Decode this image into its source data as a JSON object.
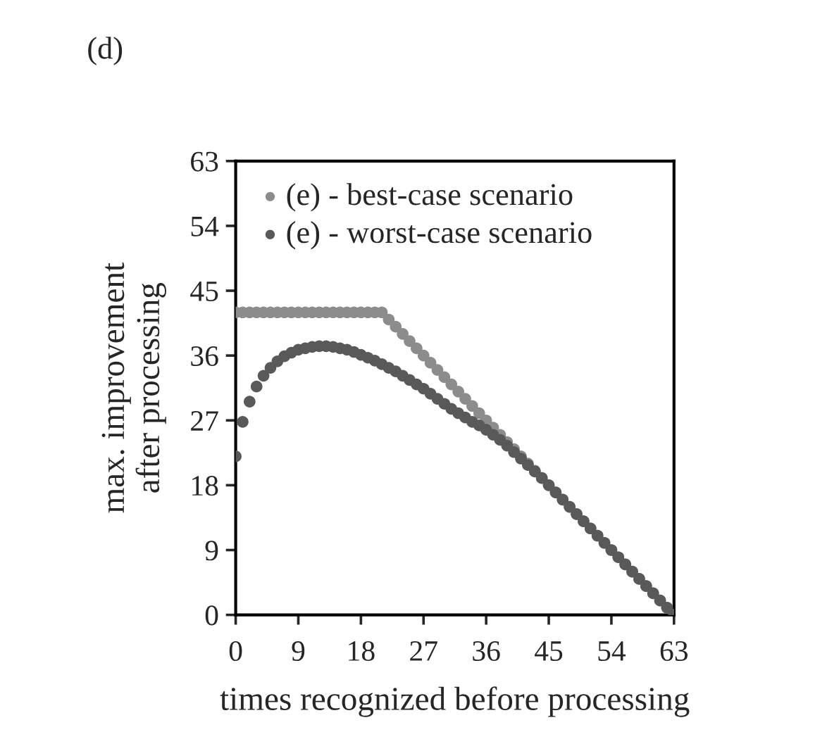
{
  "chart_data": {
    "type": "scatter",
    "title": "(d)",
    "xlabel": "times recognized before processing",
    "ylabel": "max. improvement\nafter processing",
    "xlim": [
      0,
      63
    ],
    "ylim": [
      0,
      63
    ],
    "xticks": [
      0,
      9,
      18,
      27,
      36,
      45,
      54,
      63
    ],
    "yticks": [
      0,
      9,
      18,
      27,
      36,
      45,
      54,
      63
    ],
    "grid": false,
    "legend": "top left",
    "marker": "circle",
    "x": [
      0,
      1,
      2,
      3,
      4,
      5,
      6,
      7,
      8,
      9,
      10,
      11,
      12,
      13,
      14,
      15,
      16,
      17,
      18,
      19,
      20,
      21,
      22,
      23,
      24,
      25,
      26,
      27,
      28,
      29,
      30,
      31,
      32,
      33,
      34,
      35,
      36,
      37,
      38,
      39,
      40,
      41,
      42,
      43,
      44,
      45,
      46,
      47,
      48,
      49,
      50,
      51,
      52,
      53,
      54,
      55,
      56,
      57,
      58,
      59,
      60,
      61,
      62,
      63
    ],
    "series": [
      {
        "name": "(e) - best-case scenario",
        "color": "#8c8c8c",
        "values": [
          42,
          42,
          42,
          42,
          42,
          42,
          42,
          42,
          42,
          42,
          42,
          42,
          42,
          42,
          42,
          42,
          42,
          42,
          42,
          42,
          42,
          42,
          41,
          40,
          39,
          38,
          37,
          36,
          35,
          34,
          33,
          32,
          31,
          30,
          29,
          28,
          27,
          26,
          25,
          24,
          23,
          22,
          21,
          20,
          19,
          18,
          17,
          16,
          15,
          14,
          13,
          12,
          11,
          10,
          9,
          8,
          7,
          6,
          5,
          4,
          3,
          2,
          1,
          0
        ]
      },
      {
        "name": "(e) - worst-case scenario",
        "color": "#595959",
        "values": [
          22,
          26.8,
          29.6,
          31.7,
          33.2,
          34.3,
          35.2,
          35.9,
          36.4,
          36.8,
          37.0,
          37.2,
          37.3,
          37.3,
          37.2,
          37.0,
          36.8,
          36.5,
          36.1,
          35.7,
          35.3,
          34.8,
          34.3,
          33.8,
          33.2,
          32.6,
          32.0,
          31.4,
          30.7,
          30.0,
          29.3,
          28.6,
          28.0,
          27.4,
          26.8,
          26.3,
          25.7,
          25.0,
          24.3,
          23.5,
          22.6,
          21.7,
          20.8,
          19.9,
          19.0,
          18.0,
          17.0,
          16.0,
          15.0,
          14.0,
          13.0,
          12.0,
          11.0,
          10.0,
          9.0,
          8.0,
          7.0,
          6.0,
          5.0,
          4.0,
          3.0,
          2.0,
          1.0,
          0
        ]
      }
    ]
  }
}
